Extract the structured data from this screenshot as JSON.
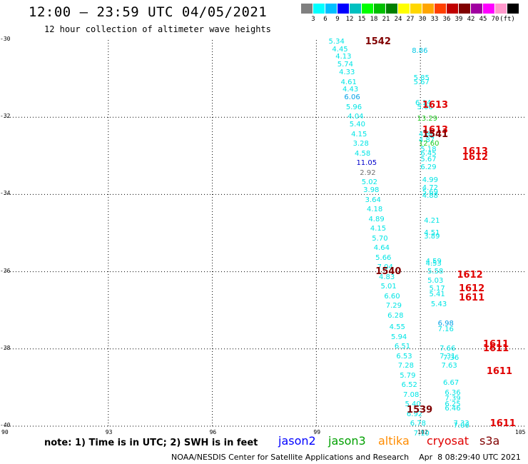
{
  "header": {
    "title": "12:00 – 23:59 UTC 04/05/2021",
    "subtitle": "12 hour collection of altimeter wave heights"
  },
  "colorbar": {
    "colors": [
      "#808080",
      "#00ffff",
      "#00bfff",
      "#0000ff",
      "#00c0c0",
      "#00ff00",
      "#00c000",
      "#008000",
      "#ffff00",
      "#ffd700",
      "#ffa500",
      "#ff4000",
      "#c00000",
      "#800000",
      "#a000a0",
      "#ff00ff",
      "#ff99cc",
      "#000000"
    ],
    "labels": [
      "3",
      "6",
      "9",
      "12",
      "15",
      "18",
      "21",
      "24",
      "27",
      "30",
      "33",
      "36",
      "39",
      "42",
      "45",
      "70",
      "(ft)"
    ]
  },
  "map": {
    "lat_labels": [
      "-30",
      "-32",
      "-34",
      "-36",
      "-38",
      "-40"
    ],
    "lon_labels": [
      "90",
      "93",
      "96",
      "99",
      "102",
      "105"
    ]
  },
  "chart_data": {
    "type": "scatter",
    "xlim": [
      90,
      105
    ],
    "ylim": [
      -40,
      -30
    ],
    "grid": true,
    "units": "ft",
    "observations": [
      {
        "lon": 99.6,
        "lat": -30.05,
        "v": "5.34",
        "c": "#00e5e5"
      },
      {
        "lon": 99.7,
        "lat": -30.25,
        "v": "4.45",
        "c": "#00e5e5"
      },
      {
        "lon": 99.8,
        "lat": -30.45,
        "v": "4.13",
        "c": "#00e5e5"
      },
      {
        "lon": 99.85,
        "lat": -30.65,
        "v": "5.74",
        "c": "#00e5e5"
      },
      {
        "lon": 99.9,
        "lat": -30.85,
        "v": "4.33",
        "c": "#00e5e5"
      },
      {
        "lon": 99.95,
        "lat": -31.1,
        "v": "4.61",
        "c": "#00e5e5"
      },
      {
        "lon": 100.0,
        "lat": -31.3,
        "v": "4.43",
        "c": "#00e5e5"
      },
      {
        "lon": 100.05,
        "lat": -31.5,
        "v": "6.06",
        "c": "#00a0e6"
      },
      {
        "lon": 100.1,
        "lat": -31.75,
        "v": "5.96",
        "c": "#00e5e5"
      },
      {
        "lon": 100.15,
        "lat": -32.0,
        "v": "4.04",
        "c": "#00e5e5"
      },
      {
        "lon": 100.2,
        "lat": -32.2,
        "v": "5.40",
        "c": "#00e5e5"
      },
      {
        "lon": 100.25,
        "lat": -32.45,
        "v": "4.15",
        "c": "#00e5e5"
      },
      {
        "lon": 100.3,
        "lat": -32.7,
        "v": "3.28",
        "c": "#00e5e5"
      },
      {
        "lon": 100.35,
        "lat": -32.95,
        "v": "4.58",
        "c": "#00e5e5"
      },
      {
        "lon": 100.4,
        "lat": -33.2,
        "v": "11.05",
        "c": "#0000cc"
      },
      {
        "lon": 100.5,
        "lat": -33.45,
        "v": "2.92",
        "c": "#707070"
      },
      {
        "lon": 100.55,
        "lat": -33.7,
        "v": "5.02",
        "c": "#00e5e5"
      },
      {
        "lon": 100.6,
        "lat": -33.9,
        "v": "3.98",
        "c": "#00e5e5"
      },
      {
        "lon": 100.65,
        "lat": -34.15,
        "v": "3.64",
        "c": "#00e5e5"
      },
      {
        "lon": 100.7,
        "lat": -34.4,
        "v": "4.18",
        "c": "#00e5e5"
      },
      {
        "lon": 100.75,
        "lat": -34.65,
        "v": "4.89",
        "c": "#00e5e5"
      },
      {
        "lon": 100.8,
        "lat": -34.9,
        "v": "4.15",
        "c": "#00e5e5"
      },
      {
        "lon": 100.85,
        "lat": -35.15,
        "v": "5.70",
        "c": "#00e5e5"
      },
      {
        "lon": 100.9,
        "lat": -35.4,
        "v": "4.64",
        "c": "#00e5e5"
      },
      {
        "lon": 100.95,
        "lat": -35.65,
        "v": "5.66",
        "c": "#00e5e5"
      },
      {
        "lon": 101.0,
        "lat": -35.9,
        "v": "7.04",
        "c": "#00e5e5"
      },
      {
        "lon": 101.05,
        "lat": -36.15,
        "v": "4.83",
        "c": "#00e5e5"
      },
      {
        "lon": 101.1,
        "lat": -36.4,
        "v": "5.01",
        "c": "#00e5e5"
      },
      {
        "lon": 101.2,
        "lat": -36.65,
        "v": "6.60",
        "c": "#00e5e5"
      },
      {
        "lon": 101.25,
        "lat": -36.9,
        "v": "7.29",
        "c": "#00e5e5"
      },
      {
        "lon": 101.3,
        "lat": -37.15,
        "v": "6.28",
        "c": "#00e5e5"
      },
      {
        "lon": 101.35,
        "lat": -37.45,
        "v": "4.55",
        "c": "#00e5e5"
      },
      {
        "lon": 101.4,
        "lat": -37.7,
        "v": "5.94",
        "c": "#00e5e5"
      },
      {
        "lon": 101.5,
        "lat": -37.95,
        "v": "6.51",
        "c": "#00e5e5"
      },
      {
        "lon": 101.55,
        "lat": -38.2,
        "v": "6.53",
        "c": "#00e5e5"
      },
      {
        "lon": 101.6,
        "lat": -38.45,
        "v": "7.28",
        "c": "#00e5e5"
      },
      {
        "lon": 101.65,
        "lat": -38.7,
        "v": "5.79",
        "c": "#00e5e5"
      },
      {
        "lon": 101.7,
        "lat": -38.95,
        "v": "6.52",
        "c": "#00e5e5"
      },
      {
        "lon": 101.75,
        "lat": -39.2,
        "v": "7.08",
        "c": "#00e5e5"
      },
      {
        "lon": 101.8,
        "lat": -39.45,
        "v": "5.40",
        "c": "#00e5e5"
      },
      {
        "lon": 101.85,
        "lat": -39.7,
        "v": "6.92",
        "c": "#00e5e5"
      },
      {
        "lon": 101.95,
        "lat": -39.95,
        "v": "6.78",
        "c": "#00e5e5"
      },
      {
        "lon": 102.05,
        "lat": -40.2,
        "v": "7.10",
        "c": "#00e5e5"
      },
      {
        "lon": 102.0,
        "lat": -30.3,
        "v": "8.86",
        "c": "#00c8e6"
      },
      {
        "lon": 102.05,
        "lat": -31.0,
        "v": "5.85",
        "c": "#00e5e5"
      },
      {
        "lon": 102.05,
        "lat": -31.1,
        "v": "5.67",
        "c": "#00e5e5"
      },
      {
        "lon": 102.1,
        "lat": -31.65,
        "v": "6.14",
        "c": "#00e5e5"
      },
      {
        "lon": 102.15,
        "lat": -31.75,
        "v": "5.06",
        "c": "#00e5e5"
      },
      {
        "lon": 102.15,
        "lat": -32.05,
        "v": "13.29",
        "c": "#22cc22"
      },
      {
        "lon": 102.2,
        "lat": -32.45,
        "v": "4.86",
        "c": "#00e5e5"
      },
      {
        "lon": 102.2,
        "lat": -32.6,
        "v": "4.87",
        "c": "#00e5e5"
      },
      {
        "lon": 102.2,
        "lat": -32.7,
        "v": "12.60",
        "c": "#22cc22"
      },
      {
        "lon": 102.25,
        "lat": -32.85,
        "v": "5.18",
        "c": "#00e5e5"
      },
      {
        "lon": 102.25,
        "lat": -32.95,
        "v": "6.45",
        "c": "#00e5e5"
      },
      {
        "lon": 102.25,
        "lat": -33.1,
        "v": "5.67",
        "c": "#00e5e5"
      },
      {
        "lon": 102.25,
        "lat": -33.3,
        "v": "6.29",
        "c": "#00e5e5"
      },
      {
        "lon": 102.3,
        "lat": -33.65,
        "v": "4.99",
        "c": "#00e5e5"
      },
      {
        "lon": 102.3,
        "lat": -33.85,
        "v": "4.72",
        "c": "#00e5e5"
      },
      {
        "lon": 102.3,
        "lat": -33.95,
        "v": "5.69",
        "c": "#00e5e5"
      },
      {
        "lon": 102.3,
        "lat": -34.05,
        "v": "4.88",
        "c": "#00e5e5"
      },
      {
        "lon": 102.35,
        "lat": -34.7,
        "v": "4.21",
        "c": "#00e5e5"
      },
      {
        "lon": 102.35,
        "lat": -35.0,
        "v": "4.51",
        "c": "#00e5e5"
      },
      {
        "lon": 102.35,
        "lat": -35.1,
        "v": "3.89",
        "c": "#00e5e5"
      },
      {
        "lon": 102.4,
        "lat": -35.75,
        "v": "4.59",
        "c": "#00e5e5"
      },
      {
        "lon": 102.4,
        "lat": -35.8,
        "v": "4.53",
        "c": "#00e5e5"
      },
      {
        "lon": 102.45,
        "lat": -36.0,
        "v": "5.58",
        "c": "#00e5e5"
      },
      {
        "lon": 102.45,
        "lat": -36.25,
        "v": "5.03",
        "c": "#00e5e5"
      },
      {
        "lon": 102.5,
        "lat": -36.45,
        "v": "5.17",
        "c": "#00e5e5"
      },
      {
        "lon": 102.5,
        "lat": -36.6,
        "v": "5.41",
        "c": "#00e5e5"
      },
      {
        "lon": 102.55,
        "lat": -36.85,
        "v": "5.43",
        "c": "#00e5e5"
      },
      {
        "lon": 102.75,
        "lat": -37.35,
        "v": "6.98",
        "c": "#00a0e6"
      },
      {
        "lon": 102.75,
        "lat": -37.5,
        "v": "7.16",
        "c": "#00e5e5"
      },
      {
        "lon": 102.8,
        "lat": -38.0,
        "v": "7.66",
        "c": "#00e5e5"
      },
      {
        "lon": 102.8,
        "lat": -38.2,
        "v": "7.31",
        "c": "#00e5e5"
      },
      {
        "lon": 102.9,
        "lat": -38.25,
        "v": "7.36",
        "c": "#00e5e5"
      },
      {
        "lon": 102.85,
        "lat": -38.45,
        "v": "7.63",
        "c": "#00e5e5"
      },
      {
        "lon": 102.9,
        "lat": -38.9,
        "v": "6.67",
        "c": "#00e5e5"
      },
      {
        "lon": 102.95,
        "lat": -39.15,
        "v": "6.36",
        "c": "#00e5e5"
      },
      {
        "lon": 102.95,
        "lat": -39.3,
        "v": "7.39",
        "c": "#00e5e5"
      },
      {
        "lon": 102.95,
        "lat": -39.45,
        "v": "6.25",
        "c": "#00e5e5"
      },
      {
        "lon": 102.95,
        "lat": -39.55,
        "v": "6.46",
        "c": "#00e5e5"
      },
      {
        "lon": 103.2,
        "lat": -39.95,
        "v": "7.33",
        "c": "#00e5e5"
      },
      {
        "lon": 103.2,
        "lat": -40.0,
        "v": "7.06",
        "c": "#00e5e5"
      }
    ],
    "time_labels": [
      {
        "lon": 100.2,
        "lat": -30.05,
        "t": "1542",
        "c": "#800000"
      },
      {
        "lon": 101.85,
        "lat": -31.7,
        "t": "1613",
        "c": "#e00000"
      },
      {
        "lon": 101.85,
        "lat": -32.35,
        "t": "1613",
        "c": "#e00000"
      },
      {
        "lon": 101.85,
        "lat": -32.45,
        "t": "1541",
        "c": "#800000"
      },
      {
        "lon": 103.0,
        "lat": -32.9,
        "t": "1613",
        "c": "#e00000"
      },
      {
        "lon": 103.0,
        "lat": -33.05,
        "t": "1612",
        "c": "#e00000"
      },
      {
        "lon": 100.5,
        "lat": -36.0,
        "t": "1540",
        "c": "#800000"
      },
      {
        "lon": 102.85,
        "lat": -36.1,
        "t": "1612",
        "c": "#e00000"
      },
      {
        "lon": 102.9,
        "lat": -36.45,
        "t": "1612",
        "c": "#e00000"
      },
      {
        "lon": 102.9,
        "lat": -36.7,
        "t": "1611",
        "c": "#e00000"
      },
      {
        "lon": 103.6,
        "lat": -37.9,
        "t": "1611",
        "c": "#e00000"
      },
      {
        "lon": 103.6,
        "lat": -38.0,
        "t": "1611",
        "c": "#e00000"
      },
      {
        "lon": 103.7,
        "lat": -38.6,
        "t": "1611",
        "c": "#e00000"
      },
      {
        "lon": 101.4,
        "lat": -39.6,
        "t": "1539",
        "c": "#800000"
      },
      {
        "lon": 103.8,
        "lat": -39.95,
        "t": "1611",
        "c": "#e00000"
      }
    ]
  },
  "footer": {
    "note": "note: 1) Time is in UTC; 2) SWH is in feet",
    "satellites": [
      {
        "name": "jason2",
        "color": "#0000ff"
      },
      {
        "name": "jason3",
        "color": "#00a000"
      },
      {
        "name": "altika",
        "color": "#ff8c00"
      },
      {
        "name": "cryosat",
        "color": "#e00000"
      },
      {
        "name": "s3a",
        "color": "#800000"
      }
    ],
    "credit": "NOAA/NESDIS Center for Satellite Applications and Research    Apr  8 08:29:40 UTC 2021"
  }
}
